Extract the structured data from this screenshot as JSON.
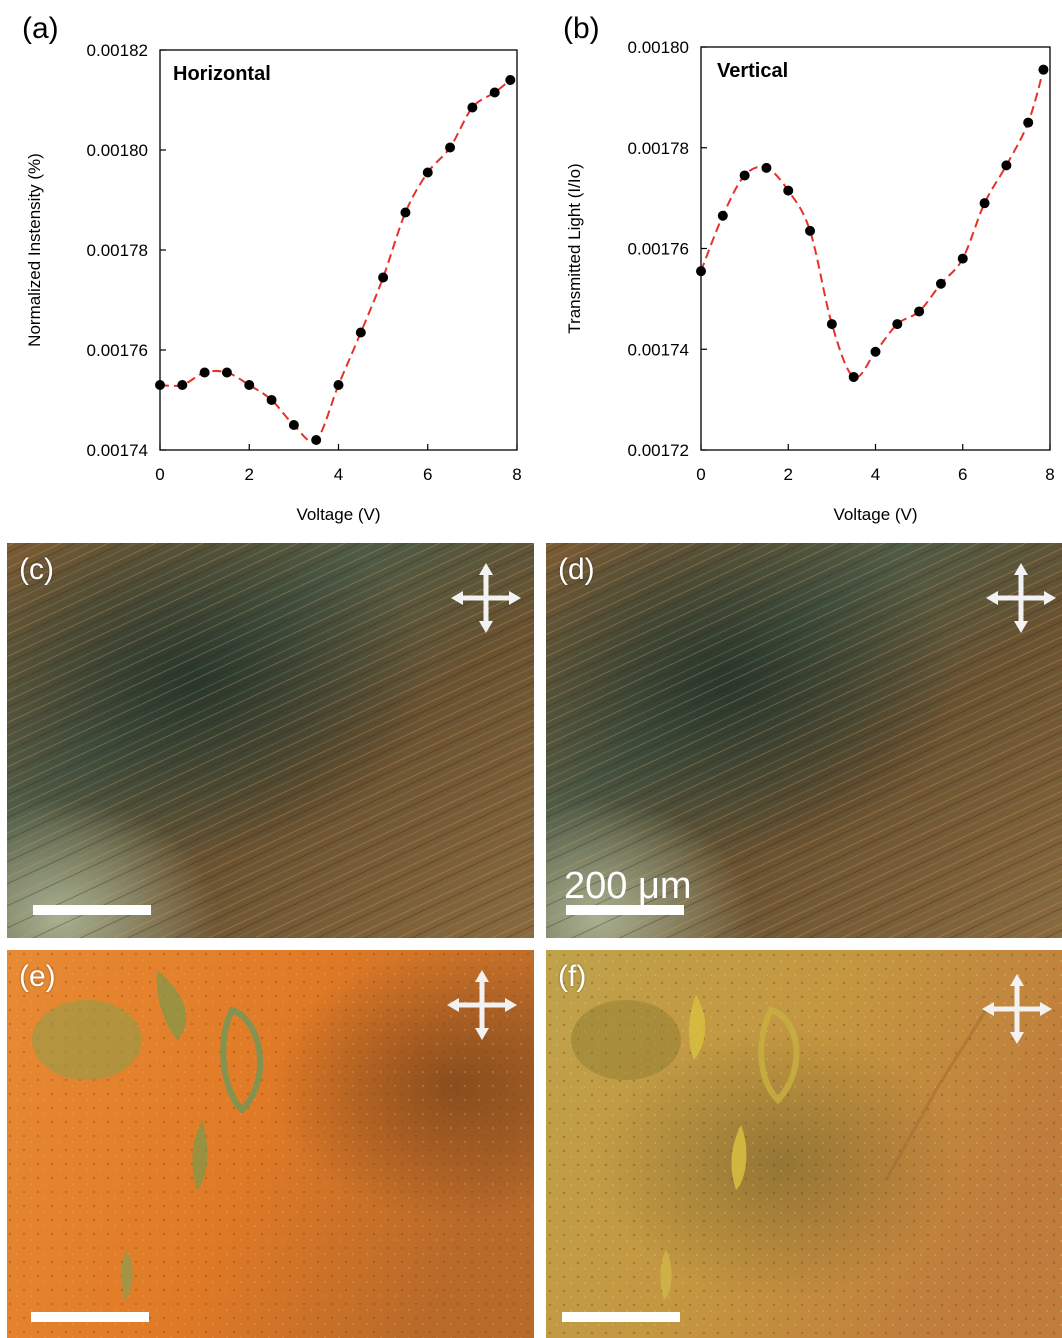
{
  "panels": {
    "a": {
      "label": "(a)"
    },
    "b": {
      "label": "(b)"
    },
    "c": {
      "label": "(c)"
    },
    "d": {
      "label": "(d)",
      "scale_text": "200 μm"
    },
    "e": {
      "label": "(e)"
    },
    "f": {
      "label": "(f)"
    }
  },
  "colors": {
    "marker": "#000000",
    "fit_line": "#e8302a",
    "photo_cd_base": "#6e5a38",
    "photo_e_base": "#e07a2a",
    "photo_f_base": "#c09a40"
  },
  "icons": [
    "polarizer-cross-icon"
  ],
  "chart_data": [
    {
      "type": "scatter",
      "annotation": "Horizontal",
      "xlabel": "Voltage (V)",
      "ylabel": "Normalized  Instensity (%)",
      "xlim": [
        0,
        8
      ],
      "ylim": [
        0.00174,
        0.00182
      ],
      "xticks": [
        "0",
        "2",
        "4",
        "6",
        "8"
      ],
      "yticks": [
        "0.00174",
        "0.00176",
        "0.00178",
        "0.00180",
        "0.00182"
      ],
      "x": [
        0,
        0.5,
        1,
        1.5,
        2,
        2.5,
        3,
        3.5,
        4,
        4.5,
        5,
        5.5,
        6,
        6.5,
        7,
        7.5,
        7.85
      ],
      "y": [
        0.001753,
        0.001753,
        0.0017555,
        0.0017555,
        0.001753,
        0.00175,
        0.001745,
        0.001742,
        0.001753,
        0.0017635,
        0.0017745,
        0.0017875,
        0.0017955,
        0.0018005,
        0.0018085,
        0.0018115,
        0.001814
      ],
      "fit": "dashed"
    },
    {
      "type": "scatter",
      "annotation": "Vertical",
      "xlabel": "Voltage (V)",
      "ylabel": "Transmitted Light (I/Io)",
      "xlim": [
        0,
        8
      ],
      "ylim": [
        0.00172,
        0.0018
      ],
      "xticks": [
        "0",
        "2",
        "4",
        "6",
        "8"
      ],
      "yticks": [
        "0.00172",
        "0.00174",
        "0.00176",
        "0.00178",
        "0.00180"
      ],
      "x": [
        0,
        0.5,
        1,
        1.5,
        2,
        2.5,
        3,
        3.5,
        4,
        4.5,
        5,
        5.5,
        6,
        6.5,
        7,
        7.5,
        7.85
      ],
      "y": [
        0.0017555,
        0.0017665,
        0.0017745,
        0.001776,
        0.0017715,
        0.0017635,
        0.001745,
        0.0017345,
        0.0017395,
        0.001745,
        0.0017475,
        0.001753,
        0.001758,
        0.001769,
        0.0017765,
        0.001785,
        0.0017955
      ],
      "fit": "dashed"
    }
  ]
}
